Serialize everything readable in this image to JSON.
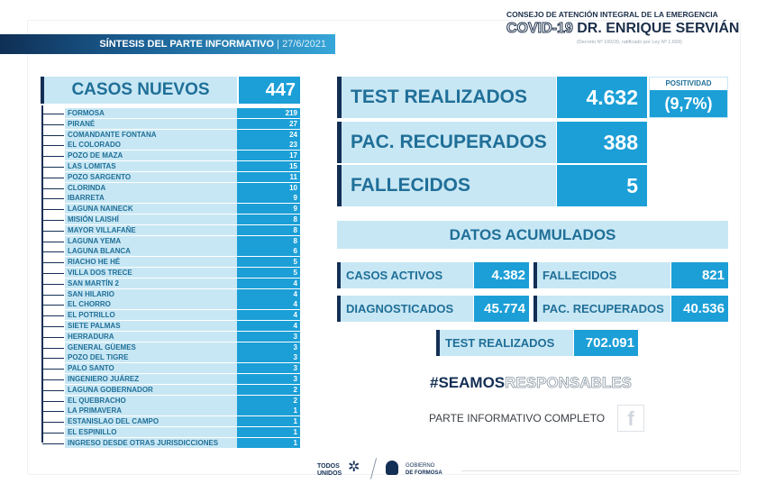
{
  "header": {
    "council": "CONSEJO DE ATENCIÓN INTEGRAL DE LA EMERGENCIA",
    "covid": "COVID-19",
    "name": "DR. ENRIQUE SERVIÁN",
    "decree": "(Decreto Nº 100/20, ratificado por Ley Nº 1.693)"
  },
  "topbar": {
    "title": "SÍNTESIS DEL PARTE INFORMATIVO",
    "separator": " | ",
    "date": "27/6/2021"
  },
  "casos_nuevos": {
    "label": "CASOS NUEVOS",
    "total": "447",
    "items": [
      {
        "name": "FORMOSA",
        "value": "219"
      },
      {
        "name": "PIRANÉ",
        "value": "27"
      },
      {
        "name": "COMANDANTE FONTANA",
        "value": "24"
      },
      {
        "name": "EL COLORADO",
        "value": "23"
      },
      {
        "name": "POZO DE MAZA",
        "value": "17"
      },
      {
        "name": "LAS LOMITAS",
        "value": "15"
      },
      {
        "name": "POZO SARGENTO",
        "value": "11"
      },
      {
        "name": "CLORINDA",
        "value": "10"
      },
      {
        "name": "IBARRETA",
        "value": "9"
      },
      {
        "name": "LAGUNA NAINECK",
        "value": "9"
      },
      {
        "name": "MISIÓN LAISHÍ",
        "value": "8"
      },
      {
        "name": "MAYOR VILLAFAÑE",
        "value": "8"
      },
      {
        "name": "LAGUNA YEMA",
        "value": "8"
      },
      {
        "name": "LAGUNA BLANCA",
        "value": "6"
      },
      {
        "name": "RIACHO HE HÉ",
        "value": "5"
      },
      {
        "name": "VILLA DOS TRECE",
        "value": "5"
      },
      {
        "name": "SAN MARTÍN 2",
        "value": "4"
      },
      {
        "name": "SAN HILARIO",
        "value": "4"
      },
      {
        "name": "EL CHORRO",
        "value": "4"
      },
      {
        "name": "EL POTRILLO",
        "value": "4"
      },
      {
        "name": "SIETE PALMAS",
        "value": "4"
      },
      {
        "name": "HERRADURA",
        "value": "3"
      },
      {
        "name": "GENERAL GÜEMES",
        "value": "3"
      },
      {
        "name": "POZO DEL TIGRE",
        "value": "3"
      },
      {
        "name": "PALO SANTO",
        "value": "3"
      },
      {
        "name": "INGENIERO JUÁREZ",
        "value": "3"
      },
      {
        "name": "LAGUNA GOBERNADOR",
        "value": "2"
      },
      {
        "name": "EL QUEBRACHO",
        "value": "2"
      },
      {
        "name": "LA PRIMAVERA",
        "value": "1"
      },
      {
        "name": "ESTANISLAO DEL CAMPO",
        "value": "1"
      },
      {
        "name": "EL ESPINILLO",
        "value": "1"
      },
      {
        "name": "INGRESO DESDE OTRAS JURISDICCIONES",
        "value": "1"
      }
    ]
  },
  "daily": {
    "tests": {
      "label": "TEST REALIZADOS",
      "value": "4.632"
    },
    "positividad": {
      "label": "POSITIVIDAD",
      "value": "(9,7%)"
    },
    "recuperados": {
      "label": "PAC. RECUPERADOS",
      "value": "388"
    },
    "fallecidos": {
      "label": "FALLECIDOS",
      "value": "5"
    }
  },
  "acumulados": {
    "title": "DATOS ACUMULADOS",
    "activos": {
      "label": "CASOS ACTIVOS",
      "value": "4.382"
    },
    "fallecidos": {
      "label": "FALLECIDOS",
      "value": "821"
    },
    "diagnosticados": {
      "label": "DIAGNOSTICADOS",
      "value": "45.774"
    },
    "recuperados": {
      "label": "PAC. RECUPERADOS",
      "value": "40.536"
    },
    "tests": {
      "label": "TEST REALIZADOS",
      "value": "702.091"
    }
  },
  "hashtag": {
    "a": "#SEAMOS",
    "b": "RESPONSABLES"
  },
  "parte_completo": "PARTE INFORMATIVO COMPLETO",
  "footer": {
    "todos": "TODOS",
    "unidos": "UNIDOS",
    "gobierno": "GOBIERNO",
    "formosa": "DE FORMOSA"
  },
  "colors": {
    "light": "#c8e7f4",
    "value": "#1c9fd7",
    "text": "#1f6f98",
    "navy": "#142f55"
  }
}
